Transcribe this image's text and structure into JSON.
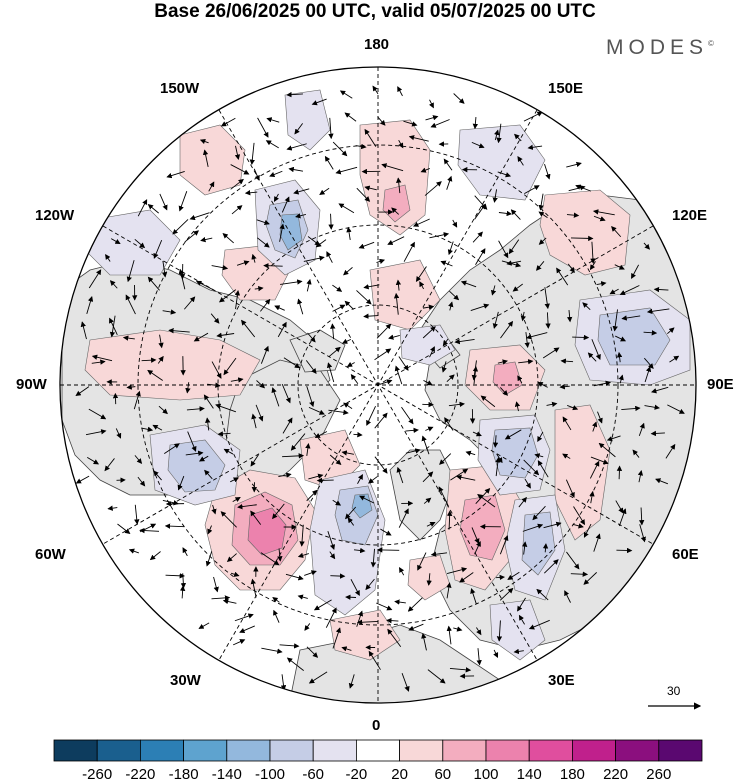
{
  "title": "Base 26/06/2025 00 UTC, valid 05/07/2025 00 UTC",
  "brand": "MODES",
  "brand_mark": "©",
  "longitude_labels": {
    "top": "180",
    "bottom": "0",
    "left": "90W",
    "right": "90E",
    "ul1": "150W",
    "ul2": "120W",
    "ur1": "150E",
    "ur2": "120E",
    "ll1": "60W",
    "ll2": "30W",
    "lr1": "60E",
    "lr2": "30E"
  },
  "reference_vector": "30",
  "colorbar": {
    "labels": [
      "-260",
      "-220",
      "-180",
      "-140",
      "-100",
      "-60",
      "-20",
      "20",
      "60",
      "100",
      "140",
      "180",
      "220",
      "260"
    ],
    "colors": [
      "#0d3c5e",
      "#1a5f8e",
      "#2c7fb5",
      "#5ea3cf",
      "#93b8dd",
      "#c5cde6",
      "#e4e2f0",
      "#ffffff",
      "#f8d8d8",
      "#f3adbf",
      "#ec82ad",
      "#e04e9e",
      "#c0208c",
      "#8b0f7e",
      "#5a0870"
    ]
  },
  "colors": {
    "land": "#e4e4e4",
    "ocean": "#ffffff",
    "coast": "#444444",
    "grid": "#000000",
    "positive_light": "#f8d8d8",
    "positive_mid": "#f3adbf",
    "positive_strong": "#ec82ad",
    "negative_light": "#e4e2f0",
    "negative_mid": "#c5cde6",
    "negative_strong": "#93b8dd",
    "negative_core": "#5ea3cf"
  }
}
